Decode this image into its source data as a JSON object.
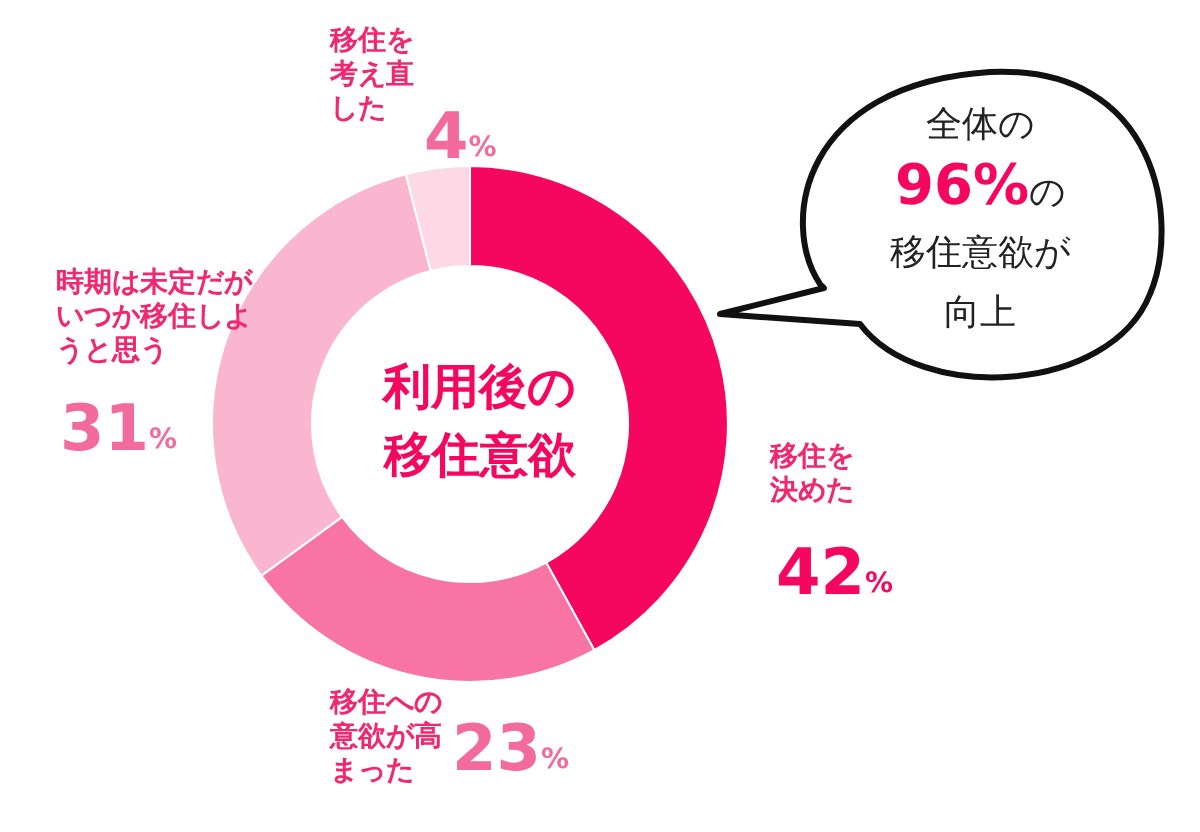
{
  "chart_data": {
    "type": "donut",
    "title": "利用後の移住意欲",
    "categories": [
      "移住を決めた",
      "移住への意欲が高まった",
      "時期は未定だがいつか移住しようと思う",
      "移住を考え直した"
    ],
    "values": [
      42,
      23,
      31,
      4
    ],
    "value_labels": [
      "42%",
      "23%",
      "31%",
      "4%"
    ],
    "colors": [
      "#f5065f",
      "#f774a3",
      "#fbb6cf",
      "#fdd8e5"
    ],
    "annotations": [
      "全体の96%の移住意欲が向上"
    ]
  }
}
